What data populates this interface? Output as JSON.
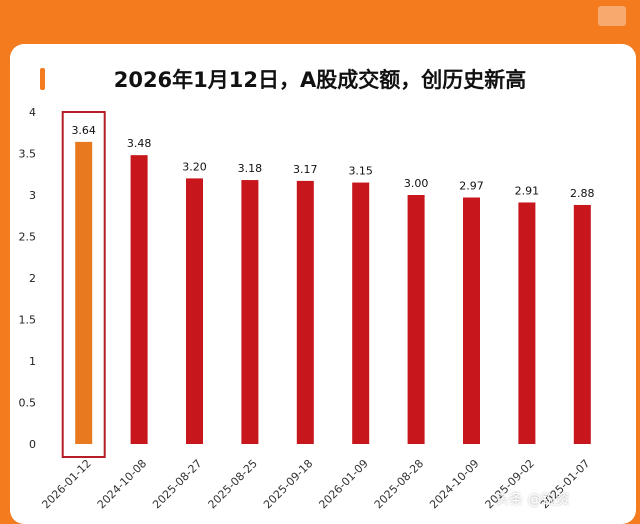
{
  "chart_data": {
    "type": "bar",
    "title": "2026年1月12日，A股成交额，创历史新高",
    "categories": [
      "2026-01-12",
      "2024-10-08",
      "2025-08-27",
      "2025-08-25",
      "2025-09-18",
      "2026-01-09",
      "2025-08-28",
      "2024-10-09",
      "2025-09-02",
      "2025-01-07"
    ],
    "values": [
      3.64,
      3.48,
      3.2,
      3.18,
      3.17,
      3.15,
      3.0,
      2.97,
      2.91,
      2.88
    ],
    "value_labels": [
      "3.64",
      "3.48",
      "3.20",
      "3.18",
      "3.17",
      "3.15",
      "3.00",
      "2.97",
      "2.91",
      "2.88"
    ],
    "ylim": [
      0,
      4
    ],
    "yticks": [
      0,
      0.5,
      1,
      1.5,
      2,
      2.5,
      3,
      3.5,
      4
    ],
    "ytick_labels": [
      "0",
      "0.5",
      "1",
      "1.5",
      "2",
      "2.5",
      "3",
      "3.5",
      "4"
    ],
    "highlight_index": 0,
    "colors": {
      "highlight": "#e8791f",
      "bar": "#c8161d",
      "highlight_box": "#b41e24",
      "accent": "#f47c1f"
    },
    "grid": false
  },
  "watermark": "头条 @锐资"
}
